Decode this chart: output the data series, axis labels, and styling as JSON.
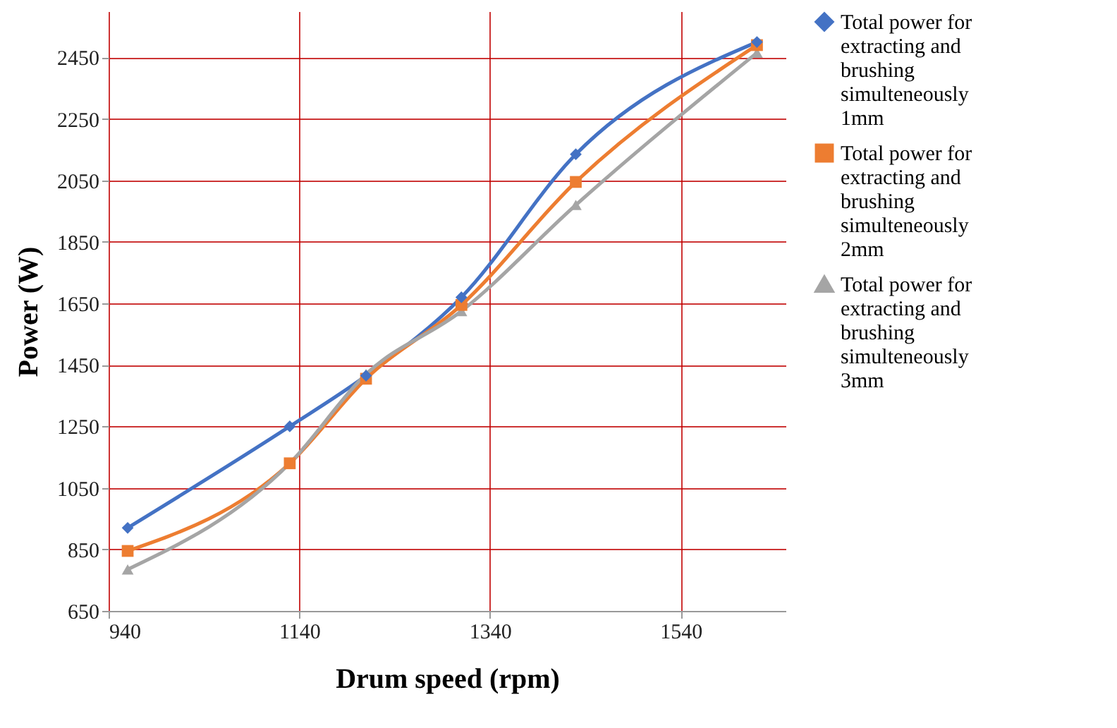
{
  "chart_data": {
    "type": "line",
    "xlabel": "Drum speed (rpm)",
    "ylabel": "Power (W)",
    "x": [
      960,
      1130,
      1210,
      1310,
      1430,
      1620
    ],
    "series": [
      {
        "name": "Total power for extracting and brushing simulteneously 1mm",
        "color": "#4472c4",
        "marker": "diamond",
        "values": [
          920,
          1250,
          1415,
          1670,
          2135,
          2500
        ]
      },
      {
        "name": "Total power for extracting and brushing simulteneously 2mm",
        "color": "#ed7d31",
        "marker": "square",
        "values": [
          845,
          1130,
          1405,
          1645,
          2045,
          2490
        ]
      },
      {
        "name": "Total power for extracting and brushing simulteneously 3mm",
        "color": "#a5a5a5",
        "marker": "triangle",
        "values": [
          785,
          1130,
          1420,
          1625,
          1970,
          2465
        ]
      }
    ],
    "xlim": [
      940,
      1650
    ],
    "xticks": [
      940,
      1140,
      1340,
      1540
    ],
    "ylim": [
      650,
      2600
    ],
    "yticks": [
      650,
      850,
      1050,
      1250,
      1450,
      1650,
      1850,
      2050,
      2250,
      2450
    ],
    "grid": true,
    "legend": "right"
  }
}
